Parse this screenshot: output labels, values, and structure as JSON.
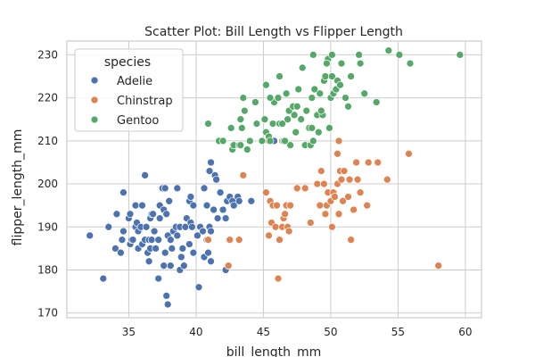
{
  "chart_data": {
    "type": "scatter",
    "title": "Scatter Plot: Bill Length vs Flipper Length",
    "xlabel": "bill_length_mm",
    "ylabel": "flipper_length_mm",
    "xlim": [
      30.4,
      61.2
    ],
    "ylim": [
      168.9,
      233.2
    ],
    "xticks": [
      35,
      40,
      45,
      50,
      55,
      60
    ],
    "yticks": [
      170,
      180,
      190,
      200,
      210,
      220,
      230
    ],
    "grid": true,
    "legend": {
      "title": "species",
      "placement": "top-left"
    },
    "series": [
      {
        "name": "Adelie",
        "color": "#4c72b0",
        "points": [
          [
            32.1,
            188
          ],
          [
            33.1,
            178
          ],
          [
            33.5,
            190
          ],
          [
            34.0,
            185
          ],
          [
            34.1,
            193
          ],
          [
            34.4,
            184
          ],
          [
            34.5,
            187
          ],
          [
            34.6,
            198
          ],
          [
            34.6,
            189
          ],
          [
            35.0,
            192
          ],
          [
            35.1,
            193
          ],
          [
            35.1,
            186
          ],
          [
            35.2,
            187
          ],
          [
            35.3,
            187
          ],
          [
            35.5,
            190
          ],
          [
            35.5,
            195
          ],
          [
            35.6,
            191
          ],
          [
            35.7,
            185
          ],
          [
            35.7,
            189
          ],
          [
            35.9,
            190
          ],
          [
            36.0,
            186
          ],
          [
            36.0,
            195
          ],
          [
            36.2,
            187
          ],
          [
            36.2,
            202
          ],
          [
            36.3,
            190
          ],
          [
            36.4,
            184
          ],
          [
            36.5,
            182
          ],
          [
            36.5,
            187
          ],
          [
            36.6,
            185
          ],
          [
            36.6,
            192
          ],
          [
            36.7,
            187
          ],
          [
            36.7,
            193
          ],
          [
            36.8,
            193
          ],
          [
            36.9,
            189
          ],
          [
            37.0,
            185
          ],
          [
            37.2,
            178
          ],
          [
            37.2,
            187
          ],
          [
            37.3,
            192
          ],
          [
            37.3,
            195
          ],
          [
            37.5,
            199
          ],
          [
            37.6,
            181
          ],
          [
            37.6,
            194
          ],
          [
            37.7,
            184
          ],
          [
            37.7,
            199
          ],
          [
            37.8,
            174
          ],
          [
            37.8,
            193
          ],
          [
            37.9,
            172
          ],
          [
            37.9,
            188
          ],
          [
            38.0,
            196
          ],
          [
            38.1,
            181
          ],
          [
            38.1,
            187
          ],
          [
            38.2,
            185
          ],
          [
            38.3,
            189
          ],
          [
            38.5,
            190
          ],
          [
            38.6,
            188
          ],
          [
            38.6,
            199
          ],
          [
            38.8,
            180
          ],
          [
            38.8,
            190
          ],
          [
            38.9,
            183
          ],
          [
            39.0,
            185
          ],
          [
            39.1,
            181
          ],
          [
            39.2,
            190
          ],
          [
            39.3,
            192
          ],
          [
            39.5,
            186
          ],
          [
            39.5,
            196
          ],
          [
            39.6,
            191
          ],
          [
            39.6,
            197
          ],
          [
            39.7,
            190
          ],
          [
            39.8,
            184
          ],
          [
            39.8,
            195
          ],
          [
            40.1,
            188
          ],
          [
            40.2,
            176
          ],
          [
            40.3,
            190
          ],
          [
            40.5,
            189
          ],
          [
            40.6,
            183
          ],
          [
            40.6,
            199
          ],
          [
            40.8,
            187
          ],
          [
            40.8,
            195
          ],
          [
            40.9,
            184
          ],
          [
            40.9,
            187
          ],
          [
            41.0,
            190
          ],
          [
            41.0,
            203
          ],
          [
            41.1,
            182
          ],
          [
            41.1,
            189
          ],
          [
            41.1,
            205
          ],
          [
            41.3,
            194
          ],
          [
            41.4,
            202
          ],
          [
            41.5,
            201
          ],
          [
            41.6,
            192
          ],
          [
            41.8,
            198
          ],
          [
            42.0,
            194
          ],
          [
            42.2,
            180
          ],
          [
            42.2,
            192
          ],
          [
            42.3,
            196
          ],
          [
            42.5,
            197
          ],
          [
            42.7,
            196
          ],
          [
            42.8,
            195
          ],
          [
            43.1,
            197
          ],
          [
            43.2,
            187
          ],
          [
            43.2,
            196
          ],
          [
            44.1,
            196
          ],
          [
            45.8,
            210
          ]
        ]
      },
      {
        "name": "Chinstrap",
        "color": "#dd8452",
        "points": [
          [
            40.9,
            187
          ],
          [
            42.4,
            181
          ],
          [
            42.5,
            187
          ],
          [
            43.2,
            187
          ],
          [
            43.5,
            202
          ],
          [
            45.2,
            198
          ],
          [
            45.4,
            188
          ],
          [
            45.5,
            196
          ],
          [
            45.6,
            191
          ],
          [
            45.7,
            195
          ],
          [
            45.9,
            190
          ],
          [
            46.0,
            195
          ],
          [
            46.1,
            178
          ],
          [
            46.2,
            187
          ],
          [
            46.4,
            190
          ],
          [
            46.5,
            192
          ],
          [
            46.6,
            193
          ],
          [
            46.7,
            195
          ],
          [
            46.8,
            190
          ],
          [
            46.9,
            189
          ],
          [
            47.0,
            195
          ],
          [
            47.5,
            199
          ],
          [
            48.1,
            199
          ],
          [
            48.5,
            191
          ],
          [
            49.0,
            200
          ],
          [
            49.2,
            195
          ],
          [
            49.3,
            203
          ],
          [
            49.5,
            200
          ],
          [
            49.6,
            193
          ],
          [
            49.7,
            195
          ],
          [
            49.8,
            198
          ],
          [
            50.0,
            196
          ],
          [
            50.1,
            190
          ],
          [
            50.2,
            198
          ],
          [
            50.3,
            197
          ],
          [
            50.5,
            200
          ],
          [
            50.6,
            193
          ],
          [
            50.7,
            203
          ],
          [
            50.8,
            201
          ],
          [
            50.9,
            196
          ],
          [
            51.0,
            203
          ],
          [
            51.3,
            197
          ],
          [
            51.4,
            201
          ],
          [
            51.5,
            187
          ],
          [
            51.7,
            194
          ],
          [
            51.9,
            205
          ],
          [
            52.0,
            201
          ],
          [
            52.2,
            198
          ],
          [
            52.7,
            195
          ],
          [
            52.8,
            205
          ],
          [
            53.5,
            205
          ],
          [
            54.2,
            201
          ],
          [
            55.8,
            207
          ],
          [
            58.0,
            181
          ],
          [
            50.6,
            210
          ],
          [
            50.5,
            207
          ],
          [
            46.4,
            210
          ],
          [
            45.4,
            210
          ]
        ]
      },
      {
        "name": "Gentoo",
        "color": "#55a868",
        "points": [
          [
            40.9,
            214
          ],
          [
            41.7,
            210
          ],
          [
            42.0,
            210
          ],
          [
            42.6,
            213
          ],
          [
            42.7,
            208
          ],
          [
            42.8,
            209
          ],
          [
            43.2,
            209
          ],
          [
            43.3,
            209
          ],
          [
            43.3,
            215
          ],
          [
            43.4,
            213
          ],
          [
            43.5,
            220
          ],
          [
            43.6,
            217
          ],
          [
            43.8,
            208
          ],
          [
            44.0,
            210
          ],
          [
            44.4,
            219
          ],
          [
            44.5,
            214
          ],
          [
            44.9,
            210
          ],
          [
            45.1,
            215
          ],
          [
            45.2,
            212
          ],
          [
            45.4,
            211
          ],
          [
            45.5,
            210
          ],
          [
            45.7,
            214
          ],
          [
            45.8,
            219
          ],
          [
            46.1,
            220
          ],
          [
            46.2,
            214
          ],
          [
            46.4,
            214
          ],
          [
            46.5,
            210
          ],
          [
            46.6,
            210
          ],
          [
            46.7,
            221
          ],
          [
            46.8,
            215
          ],
          [
            46.9,
            217
          ],
          [
            47.0,
            209
          ],
          [
            47.2,
            218
          ],
          [
            47.3,
            216
          ],
          [
            47.4,
            212
          ],
          [
            47.5,
            218
          ],
          [
            47.6,
            222
          ],
          [
            47.8,
            215
          ],
          [
            48.1,
            209
          ],
          [
            48.2,
            217
          ],
          [
            48.4,
            213
          ],
          [
            48.5,
            209
          ],
          [
            48.6,
            213
          ],
          [
            48.7,
            210
          ],
          [
            48.8,
            222
          ],
          [
            49.0,
            216
          ],
          [
            49.1,
            212
          ],
          [
            49.2,
            221
          ],
          [
            49.4,
            216
          ],
          [
            49.5,
            224
          ],
          [
            49.6,
            225
          ],
          [
            49.8,
            229
          ],
          [
            49.9,
            213
          ],
          [
            50.0,
            220
          ],
          [
            50.1,
            225
          ],
          [
            50.2,
            221
          ],
          [
            50.4,
            222
          ],
          [
            50.5,
            224
          ],
          [
            50.7,
            223
          ],
          [
            50.8,
            228
          ],
          [
            51.1,
            220
          ],
          [
            51.3,
            218
          ],
          [
            51.5,
            225
          ],
          [
            52.1,
            230
          ],
          [
            52.2,
            228
          ],
          [
            52.5,
            221
          ],
          [
            53.4,
            219
          ],
          [
            54.3,
            231
          ],
          [
            55.1,
            230
          ],
          [
            55.9,
            228
          ],
          [
            59.6,
            230
          ],
          [
            48.7,
            230
          ],
          [
            49.7,
            228
          ],
          [
            48.6,
            220
          ],
          [
            45.5,
            220
          ],
          [
            46.2,
            225
          ],
          [
            50.1,
            230
          ],
          [
            47.9,
            227
          ],
          [
            49.3,
            217
          ],
          [
            45.2,
            223
          ]
        ]
      }
    ]
  }
}
